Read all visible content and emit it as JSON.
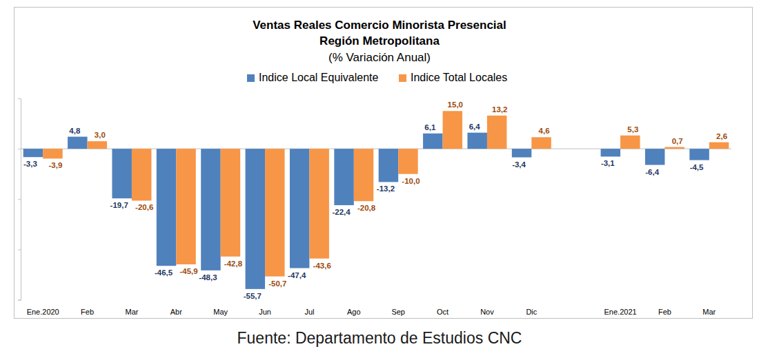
{
  "chart_data": {
    "type": "bar",
    "title": [
      "Ventas Reales Comercio Minorista Presencial",
      "Región Metropolitana"
    ],
    "subtitle": "(% Variación Anual)",
    "annotations": [
      "Fuente: Departamento de Estudios CNC"
    ],
    "categories": [
      "Ene.2020",
      "Feb",
      "Mar",
      "Abr",
      "May",
      "Jun",
      "Jul",
      "Ago",
      "Sep",
      "Oct",
      "Nov",
      "Dic",
      null,
      "Ene.2021",
      "Feb",
      "Mar"
    ],
    "series": [
      {
        "name": "Indice Local Equivalente",
        "color": "#4f81bd",
        "values": [
          -3.3,
          4.8,
          -19.7,
          -46.5,
          -48.3,
          -55.7,
          -47.4,
          -22.4,
          -13.2,
          6.1,
          6.4,
          -3.4,
          null,
          -3.1,
          -6.4,
          -4.5
        ],
        "value_labels": [
          "-3,3",
          "4,8",
          "-19,7",
          "-46,5",
          "-48,3",
          "-55,7",
          "-47,4",
          "-22,4",
          "-13,2",
          "6,1",
          "6,4",
          "-3,4",
          null,
          "-3,1",
          "-6,4",
          "-4,5"
        ]
      },
      {
        "name": "Indice Total Locales",
        "color": "#f79646",
        "values": [
          -3.9,
          3.0,
          -20.6,
          -45.9,
          -42.8,
          -50.7,
          -43.6,
          -20.8,
          -10.0,
          15.0,
          13.2,
          4.6,
          null,
          5.3,
          0.7,
          2.6
        ],
        "value_labels": [
          "-3,9",
          "3,0",
          "-20,6",
          "-45,9",
          "-42,8",
          "-50,7",
          "-43,6",
          "-20,8",
          "-10,0",
          "15,0",
          "13,2",
          "4,6",
          null,
          "5,3",
          "0,7",
          "2,6"
        ]
      }
    ],
    "ylim": [
      -60,
      20
    ],
    "yticks": [
      -60,
      -40,
      -20,
      0,
      20
    ],
    "grid": false,
    "legend": "top",
    "data_labels": true,
    "tick_labels": "x"
  }
}
